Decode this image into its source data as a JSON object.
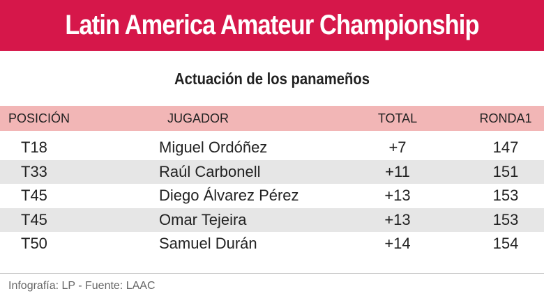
{
  "header": {
    "title": "Latin America Amateur Championship"
  },
  "subtitle": "Actuación de los panameños",
  "table": {
    "columns": [
      "POSICIÓN",
      "JUGADOR",
      "TOTAL",
      "RONDA1"
    ],
    "rows": [
      [
        "T18",
        "Miguel Ordóñez",
        "+7",
        "147"
      ],
      [
        "T33",
        "Raúl Carbonell",
        "+11",
        "151"
      ],
      [
        "T45",
        "Diego Álvarez Pérez",
        "+13",
        "153"
      ],
      [
        "T45",
        "Omar Tejeira",
        "+13",
        "153"
      ],
      [
        "T50",
        "Samuel Durán",
        "+14",
        "154"
      ]
    ]
  },
  "footer": {
    "source": "Infografía: LP - Fuente: LAAC"
  }
}
